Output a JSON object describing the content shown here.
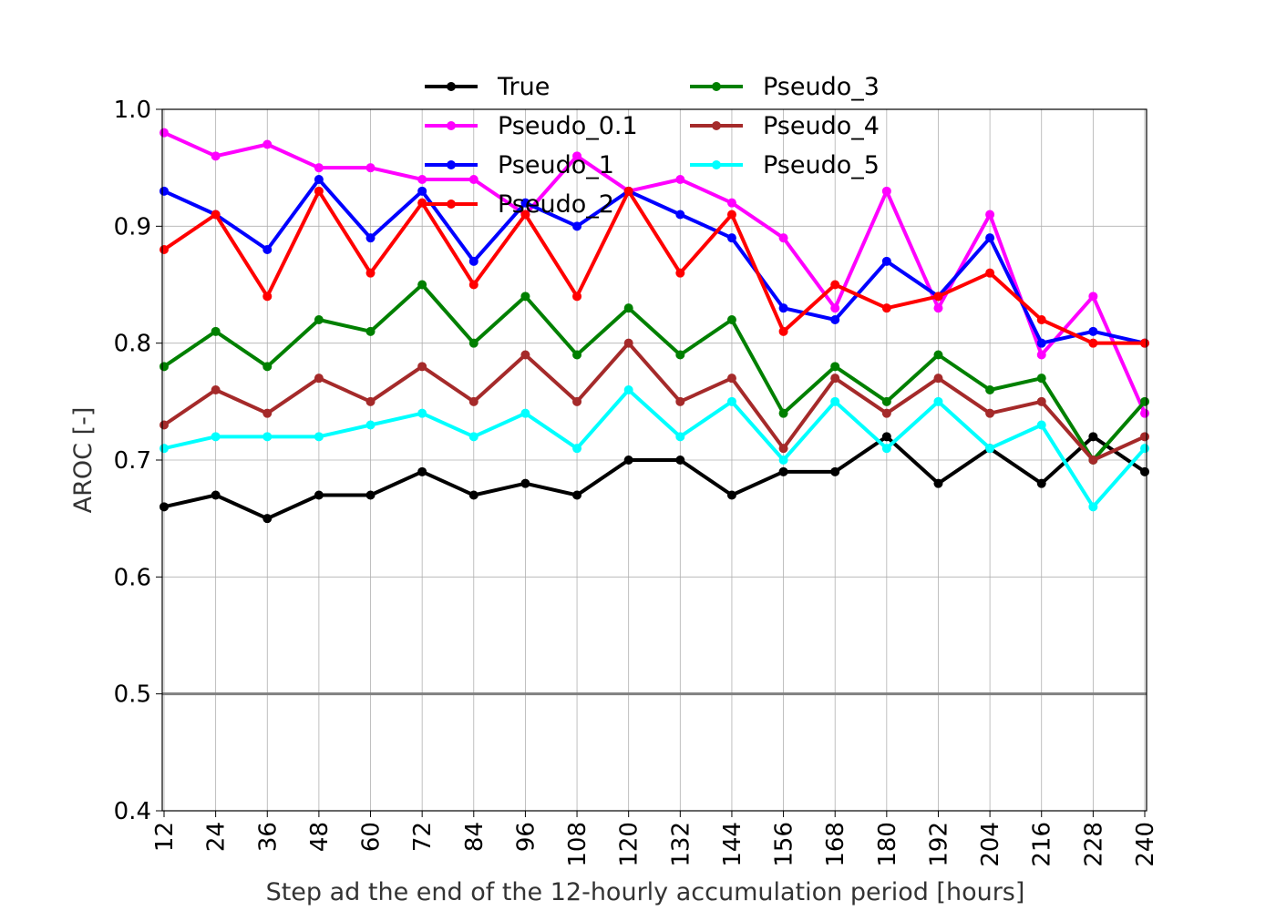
{
  "chart_data": {
    "type": "line",
    "title": "",
    "xlabel": "Step ad the end of the 12-hourly accumulation period [hours]",
    "ylabel": "AROC [-]",
    "x": [
      12,
      24,
      36,
      48,
      60,
      72,
      84,
      96,
      108,
      120,
      132,
      144,
      156,
      168,
      180,
      192,
      204,
      216,
      228,
      240
    ],
    "x_tick_labels": [
      "12",
      "24",
      "36",
      "48",
      "60",
      "72",
      "84",
      "96",
      "108",
      "120",
      "132",
      "144",
      "156",
      "168",
      "180",
      "192",
      "204",
      "216",
      "228",
      "240"
    ],
    "xlim": [
      12,
      240
    ],
    "ylim": [
      0.4,
      1.0
    ],
    "y_ticks": [
      0.4,
      0.5,
      0.6,
      0.7,
      0.8,
      0.9,
      1.0
    ],
    "y_tick_labels": [
      "0.4",
      "0.5",
      "0.6",
      "0.7",
      "0.8",
      "0.9",
      "1.0"
    ],
    "grid": true,
    "legend_placement": "top-center",
    "reference_line": {
      "y": 0.5,
      "color": "#808080"
    },
    "series": [
      {
        "name": "True",
        "color": "#000000",
        "values": [
          0.66,
          0.67,
          0.65,
          0.67,
          0.67,
          0.69,
          0.67,
          0.68,
          0.67,
          0.7,
          0.7,
          0.67,
          0.69,
          0.69,
          0.72,
          0.68,
          0.71,
          0.68,
          0.72,
          0.69
        ]
      },
      {
        "name": "Pseudo_0.1",
        "color": "#ff00ff",
        "values": [
          0.98,
          0.96,
          0.97,
          0.95,
          0.95,
          0.94,
          0.94,
          0.91,
          0.96,
          0.93,
          0.94,
          0.92,
          0.89,
          0.83,
          0.93,
          0.83,
          0.91,
          0.79,
          0.84,
          0.74
        ]
      },
      {
        "name": "Pseudo_1",
        "color": "#0000ff",
        "values": [
          0.93,
          0.91,
          0.88,
          0.94,
          0.89,
          0.93,
          0.87,
          0.92,
          0.9,
          0.93,
          0.91,
          0.89,
          0.83,
          0.82,
          0.87,
          0.84,
          0.89,
          0.8,
          0.81,
          0.8
        ]
      },
      {
        "name": "Pseudo_2",
        "color": "#ff0000",
        "values": [
          0.88,
          0.91,
          0.84,
          0.93,
          0.86,
          0.92,
          0.85,
          0.91,
          0.84,
          0.93,
          0.86,
          0.91,
          0.81,
          0.85,
          0.83,
          0.84,
          0.86,
          0.82,
          0.8,
          0.8
        ]
      },
      {
        "name": "Pseudo_3",
        "color": "#008000",
        "values": [
          0.78,
          0.81,
          0.78,
          0.82,
          0.81,
          0.85,
          0.8,
          0.84,
          0.79,
          0.83,
          0.79,
          0.82,
          0.74,
          0.78,
          0.75,
          0.79,
          0.76,
          0.77,
          0.7,
          0.75
        ]
      },
      {
        "name": "Pseudo_4",
        "color": "#a52a2a",
        "values": [
          0.73,
          0.76,
          0.74,
          0.77,
          0.75,
          0.78,
          0.75,
          0.79,
          0.75,
          0.8,
          0.75,
          0.77,
          0.71,
          0.77,
          0.74,
          0.77,
          0.74,
          0.75,
          0.7,
          0.72
        ]
      },
      {
        "name": "Pseudo_5",
        "color": "#00ffff",
        "values": [
          0.71,
          0.72,
          0.72,
          0.72,
          0.73,
          0.74,
          0.72,
          0.74,
          0.71,
          0.76,
          0.72,
          0.75,
          0.7,
          0.75,
          0.71,
          0.75,
          0.71,
          0.73,
          0.66,
          0.71
        ]
      }
    ]
  }
}
